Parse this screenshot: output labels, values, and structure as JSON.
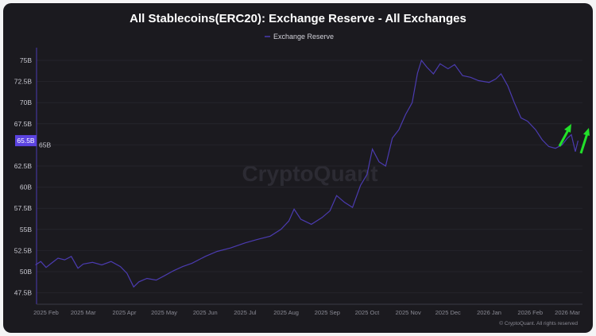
{
  "chart_data": {
    "type": "line",
    "title": "All Stablecoins(ERC20): Exchange Reserve - All Exchanges",
    "legend": [
      "Exchange Reserve"
    ],
    "legend_placement": "top-center",
    "xlabel": "",
    "ylabel": "",
    "ylim": [
      46,
      76
    ],
    "y_ticks": [
      "47.5B",
      "50B",
      "52.5B",
      "55B",
      "57.5B",
      "60B",
      "62.5B",
      "65B",
      "67.5B",
      "70B",
      "72.5B",
      "75B"
    ],
    "y_tick_values": [
      47.5,
      50,
      52.5,
      55,
      57.5,
      60,
      62.5,
      65,
      67.5,
      70,
      72.5,
      75
    ],
    "x_ticks": [
      "2025 Feb",
      "2025 Mar",
      "2025 Apr",
      "2025 May",
      "2025 Jun",
      "2025 Jul",
      "2025 Aug",
      "2025 Sep",
      "2025 Oct",
      "2025 Nov",
      "2025 Dec",
      "2026 Jan",
      "2026 Feb",
      "2026 Mar"
    ],
    "x_tick_dates": [
      "2025-02-01",
      "2025-03-01",
      "2025-04-01",
      "2025-05-01",
      "2025-06-01",
      "2025-07-01",
      "2025-08-01",
      "2025-09-01",
      "2025-10-01",
      "2025-11-01",
      "2025-12-01",
      "2026-01-01",
      "2026-02-01",
      "2026-03-01"
    ],
    "current_value_label": "65.5B",
    "current_value": 65.5,
    "watermark": "CryptoQuant",
    "copyright": "© CryptoQuant. All rights reserved",
    "series": [
      {
        "name": "Exchange Reserve",
        "color": "#4b3bb0",
        "points": [
          [
            "2025-01-24",
            50.8
          ],
          [
            "2025-01-28",
            51.2
          ],
          [
            "2025-02-01",
            50.5
          ],
          [
            "2025-02-05",
            51.0
          ],
          [
            "2025-02-10",
            51.6
          ],
          [
            "2025-02-15",
            51.4
          ],
          [
            "2025-02-20",
            51.8
          ],
          [
            "2025-02-25",
            50.4
          ],
          [
            "2025-03-01",
            50.9
          ],
          [
            "2025-03-08",
            51.1
          ],
          [
            "2025-03-15",
            50.8
          ],
          [
            "2025-03-22",
            51.2
          ],
          [
            "2025-03-29",
            50.6
          ],
          [
            "2025-04-03",
            49.8
          ],
          [
            "2025-04-08",
            48.2
          ],
          [
            "2025-04-12",
            48.8
          ],
          [
            "2025-04-18",
            49.2
          ],
          [
            "2025-04-25",
            49.0
          ],
          [
            "2025-05-01",
            49.5
          ],
          [
            "2025-05-08",
            50.1
          ],
          [
            "2025-05-15",
            50.6
          ],
          [
            "2025-05-22",
            51.0
          ],
          [
            "2025-06-01",
            51.8
          ],
          [
            "2025-06-10",
            52.4
          ],
          [
            "2025-06-20",
            52.8
          ],
          [
            "2025-07-01",
            53.4
          ],
          [
            "2025-07-10",
            53.8
          ],
          [
            "2025-07-20",
            54.2
          ],
          [
            "2025-07-28",
            55.0
          ],
          [
            "2025-08-03",
            56.0
          ],
          [
            "2025-08-07",
            57.4
          ],
          [
            "2025-08-12",
            56.2
          ],
          [
            "2025-08-20",
            55.6
          ],
          [
            "2025-08-28",
            56.4
          ],
          [
            "2025-09-03",
            57.2
          ],
          [
            "2025-09-08",
            59.0
          ],
          [
            "2025-09-14",
            58.2
          ],
          [
            "2025-09-20",
            57.6
          ],
          [
            "2025-09-26",
            60.2
          ],
          [
            "2025-10-01",
            61.5
          ],
          [
            "2025-10-05",
            64.5
          ],
          [
            "2025-10-10",
            63.0
          ],
          [
            "2025-10-15",
            62.5
          ],
          [
            "2025-10-20",
            65.8
          ],
          [
            "2025-10-25",
            66.8
          ],
          [
            "2025-10-30",
            68.6
          ],
          [
            "2025-11-04",
            70.0
          ],
          [
            "2025-11-08",
            73.5
          ],
          [
            "2025-11-11",
            75.0
          ],
          [
            "2025-11-15",
            74.2
          ],
          [
            "2025-11-20",
            73.4
          ],
          [
            "2025-11-25",
            74.6
          ],
          [
            "2025-12-01",
            74.0
          ],
          [
            "2025-12-06",
            74.5
          ],
          [
            "2025-12-12",
            73.2
          ],
          [
            "2025-12-18",
            73.0
          ],
          [
            "2025-12-24",
            72.6
          ],
          [
            "2026-01-01",
            72.4
          ],
          [
            "2026-01-06",
            72.8
          ],
          [
            "2026-01-10",
            73.4
          ],
          [
            "2026-01-15",
            72.0
          ],
          [
            "2026-01-20",
            70.0
          ],
          [
            "2026-01-25",
            68.2
          ],
          [
            "2026-01-30",
            67.8
          ],
          [
            "2026-02-05",
            66.8
          ],
          [
            "2026-02-10",
            65.6
          ],
          [
            "2026-02-15",
            64.8
          ],
          [
            "2026-02-20",
            64.6
          ],
          [
            "2026-02-25",
            65.0
          ],
          [
            "2026-03-01",
            65.8
          ],
          [
            "2026-03-04",
            66.2
          ],
          [
            "2026-03-07",
            64.2
          ],
          [
            "2026-03-09",
            65.5
          ]
        ]
      }
    ]
  }
}
